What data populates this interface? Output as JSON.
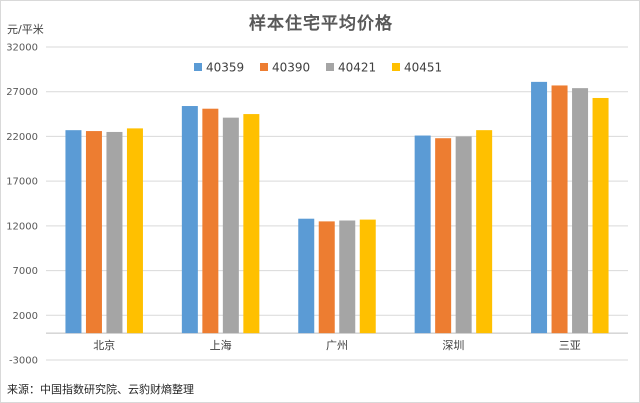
{
  "chart_data": {
    "type": "bar",
    "title": "样本住宅平均价格",
    "unit_label": "元/平米",
    "categories": [
      "北京",
      "上海",
      "广州",
      "深圳",
      "三亚"
    ],
    "series": [
      {
        "name": "40359",
        "color": "#5B9BD5",
        "values": [
          22700,
          25400,
          12800,
          22100,
          28100
        ]
      },
      {
        "name": "40390",
        "color": "#ED7D31",
        "values": [
          22600,
          25100,
          12500,
          21800,
          27700
        ]
      },
      {
        "name": "40421",
        "color": "#A5A5A5",
        "values": [
          22500,
          24100,
          12600,
          22000,
          27400
        ]
      },
      {
        "name": "40451",
        "color": "#FFC000",
        "values": [
          22900,
          24500,
          12700,
          22700,
          26300
        ]
      }
    ],
    "ylim": [
      -3000,
      32000
    ],
    "yticks": [
      -3000,
      2000,
      7000,
      12000,
      17000,
      22000,
      27000,
      32000
    ],
    "grid": true,
    "legend_position": "top-center",
    "source": "来源：中国指数研究院、云豹财熵整理"
  }
}
